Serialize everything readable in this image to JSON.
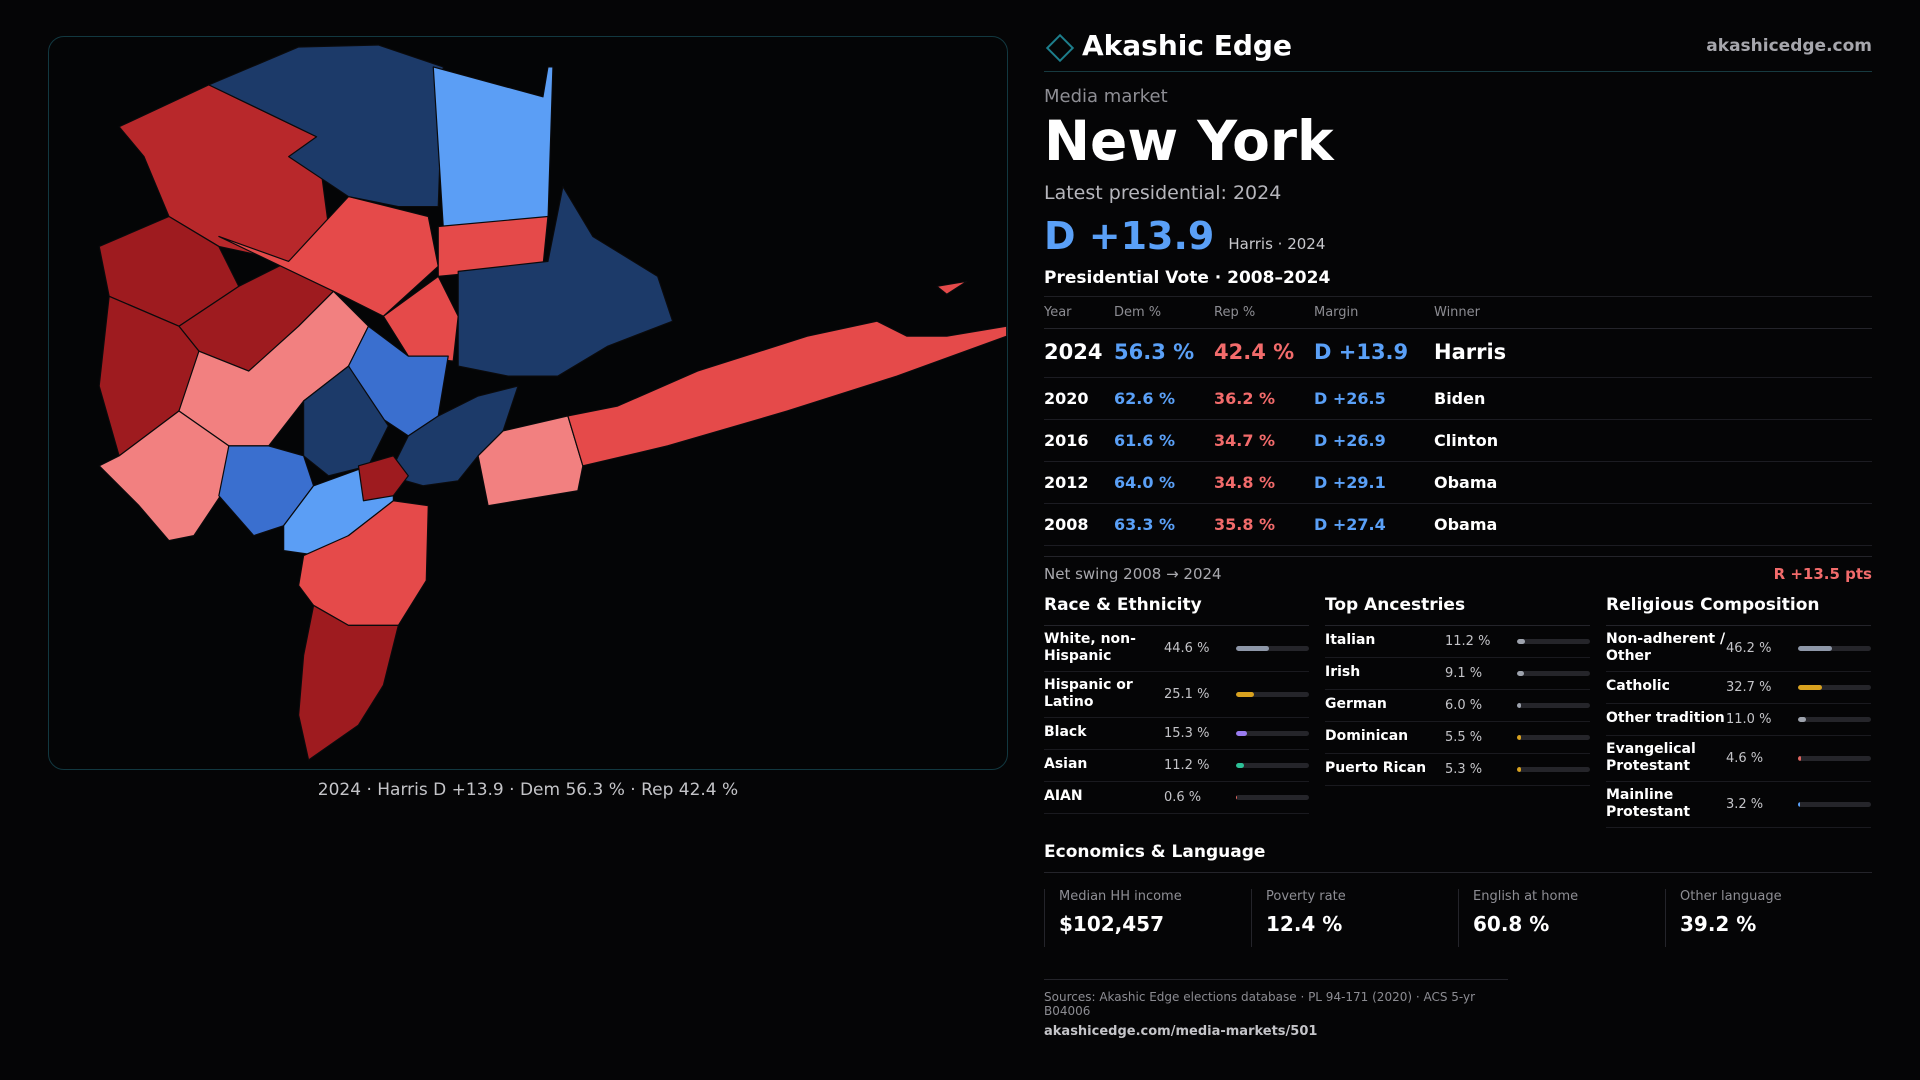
{
  "brand": {
    "name": "Akashic Edge",
    "site": "akashicedge.com"
  },
  "market": {
    "eyebrow": "Media market",
    "name": "New York",
    "latest_label": "Latest presidential: 2024",
    "headline_margin": "D +13.9",
    "headline_sub": "Harris · 2024"
  },
  "votes": {
    "title": "Presidential Vote · 2008–2024",
    "headers": {
      "year": "Year",
      "dem": "Dem %",
      "rep": "Rep %",
      "margin": "Margin",
      "winner": "Winner"
    },
    "rows": [
      {
        "year": "2024",
        "dem": "56.3 %",
        "rep": "42.4 %",
        "margin": "D +13.9",
        "winner": "Harris"
      },
      {
        "year": "2020",
        "dem": "62.6 %",
        "rep": "36.2 %",
        "margin": "D +26.5",
        "winner": "Biden"
      },
      {
        "year": "2016",
        "dem": "61.6 %",
        "rep": "34.7 %",
        "margin": "D +26.9",
        "winner": "Clinton"
      },
      {
        "year": "2012",
        "dem": "64.0 %",
        "rep": "34.8 %",
        "margin": "D +29.1",
        "winner": "Obama"
      },
      {
        "year": "2008",
        "dem": "63.3 %",
        "rep": "35.8 %",
        "margin": "D +27.4",
        "winner": "Obama"
      }
    ],
    "swing_label": "Net swing 2008 → 2024",
    "swing_value": "R +13.5 pts"
  },
  "race": {
    "title": "Race & Ethnicity",
    "items": [
      {
        "label": "White, non-Hispanic",
        "value": "44.6 %",
        "pct": 44.6,
        "color": "#8e97a8"
      },
      {
        "label": "Hispanic or Latino",
        "value": "25.1 %",
        "pct": 25.1,
        "color": "#d9a21f"
      },
      {
        "label": "Black",
        "value": "15.3 %",
        "pct": 15.3,
        "color": "#9a7cf0"
      },
      {
        "label": "Asian",
        "value": "11.2 %",
        "pct": 11.2,
        "color": "#2cc197"
      },
      {
        "label": "AIAN",
        "value": "0.6 %",
        "pct": 0.6,
        "color": "#e0655f"
      }
    ]
  },
  "ancestry": {
    "title": "Top Ancestries",
    "items": [
      {
        "label": "Italian",
        "value": "11.2 %",
        "pct": 11.2,
        "color": "#9ea3ad"
      },
      {
        "label": "Irish",
        "value": "9.1 %",
        "pct": 9.1,
        "color": "#9ea3ad"
      },
      {
        "label": "German",
        "value": "6.0 %",
        "pct": 6.0,
        "color": "#9ea3ad"
      },
      {
        "label": "Dominican",
        "value": "5.5 %",
        "pct": 5.5,
        "color": "#d9a21f"
      },
      {
        "label": "Puerto Rican",
        "value": "5.3 %",
        "pct": 5.3,
        "color": "#d9a21f"
      }
    ]
  },
  "religion": {
    "title": "Religious Composition",
    "items": [
      {
        "label": "Non-adherent / Other",
        "value": "46.2 %",
        "pct": 46.2,
        "color": "#8e97a8"
      },
      {
        "label": "Catholic",
        "value": "32.7 %",
        "pct": 32.7,
        "color": "#d9a21f"
      },
      {
        "label": "Other tradition",
        "value": "11.0 %",
        "pct": 11.0,
        "color": "#9ea3ad"
      },
      {
        "label": "Evangelical Protestant",
        "value": "4.6 %",
        "pct": 4.6,
        "color": "#e0655f"
      },
      {
        "label": "Mainline Protestant",
        "value": "3.2 %",
        "pct": 3.2,
        "color": "#5aa0f7"
      }
    ]
  },
  "economics": {
    "title": "Economics & Language",
    "cells": [
      {
        "label": "Median HH income",
        "value": "$102,457"
      },
      {
        "label": "Poverty rate",
        "value": "12.4 %"
      },
      {
        "label": "English at home",
        "value": "60.8 %"
      },
      {
        "label": "Other language",
        "value": "39.2 %"
      }
    ]
  },
  "sources": {
    "text": "Sources: Akashic Edge elections database · PL 94-171 (2020) · ACS 5-yr B04006",
    "url": "akashicedge.com/media-markets/501"
  },
  "map": {
    "caption": "2024 · Harris D +13.9 · Dem 56.3 % · Rep 42.4 %",
    "colors": {
      "strong_r": "#9e1b1f",
      "likely_r": "#b8282b",
      "lean_r": "#e54a4a",
      "tilt_r": "#f28080",
      "tilt_d": "#3a6fcf",
      "lean_d": "#5b9ef5",
      "strong_d": "#1c3a69"
    }
  }
}
